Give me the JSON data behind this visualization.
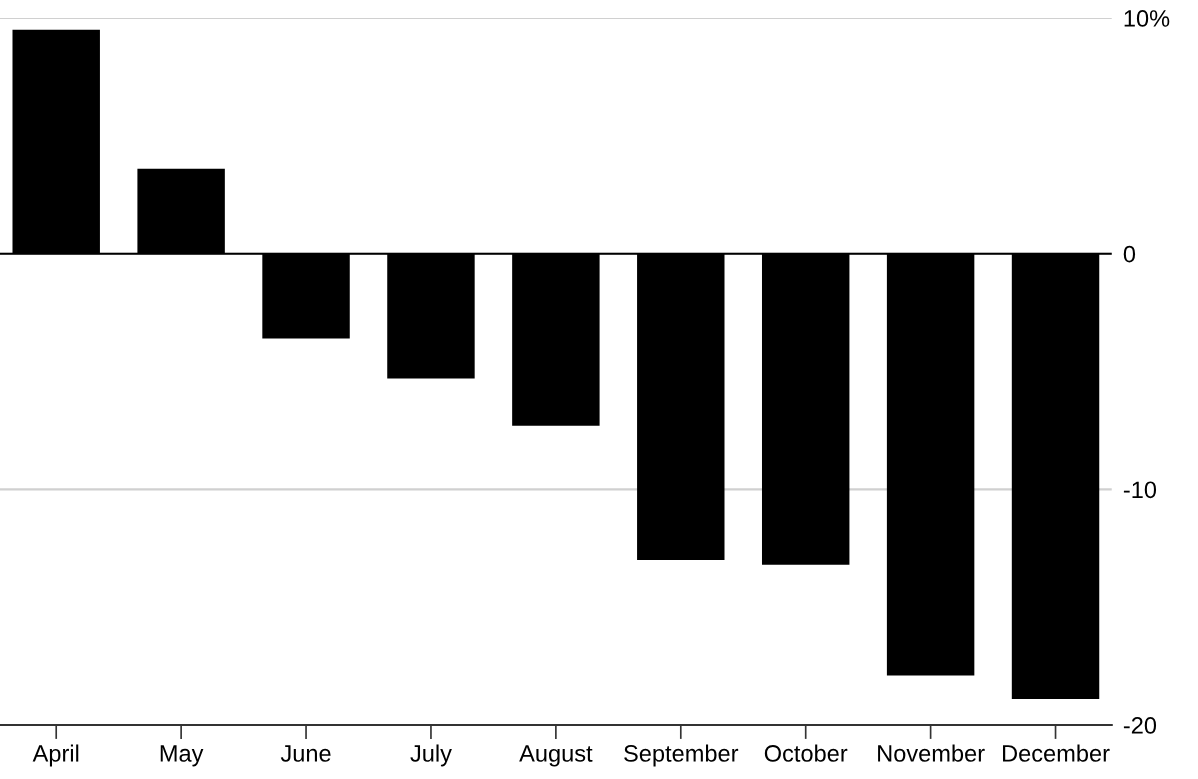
{
  "chart_data": {
    "type": "bar",
    "categories": [
      "April",
      "May",
      "June",
      "July",
      "August",
      "September",
      "October",
      "November",
      "December"
    ],
    "values": [
      9.5,
      3.6,
      -3.6,
      -5.3,
      -7.3,
      -13.0,
      -13.2,
      -17.9,
      -18.9
    ],
    "color": "#000000",
    "ylim": [
      -20,
      10
    ],
    "yticks": [
      {
        "value": 10,
        "label": "10%"
      },
      0,
      -10,
      -20
    ],
    "grid": "y",
    "ref_lines": [
      {
        "axis": "y",
        "value": 0,
        "color": "#000000"
      }
    ]
  }
}
